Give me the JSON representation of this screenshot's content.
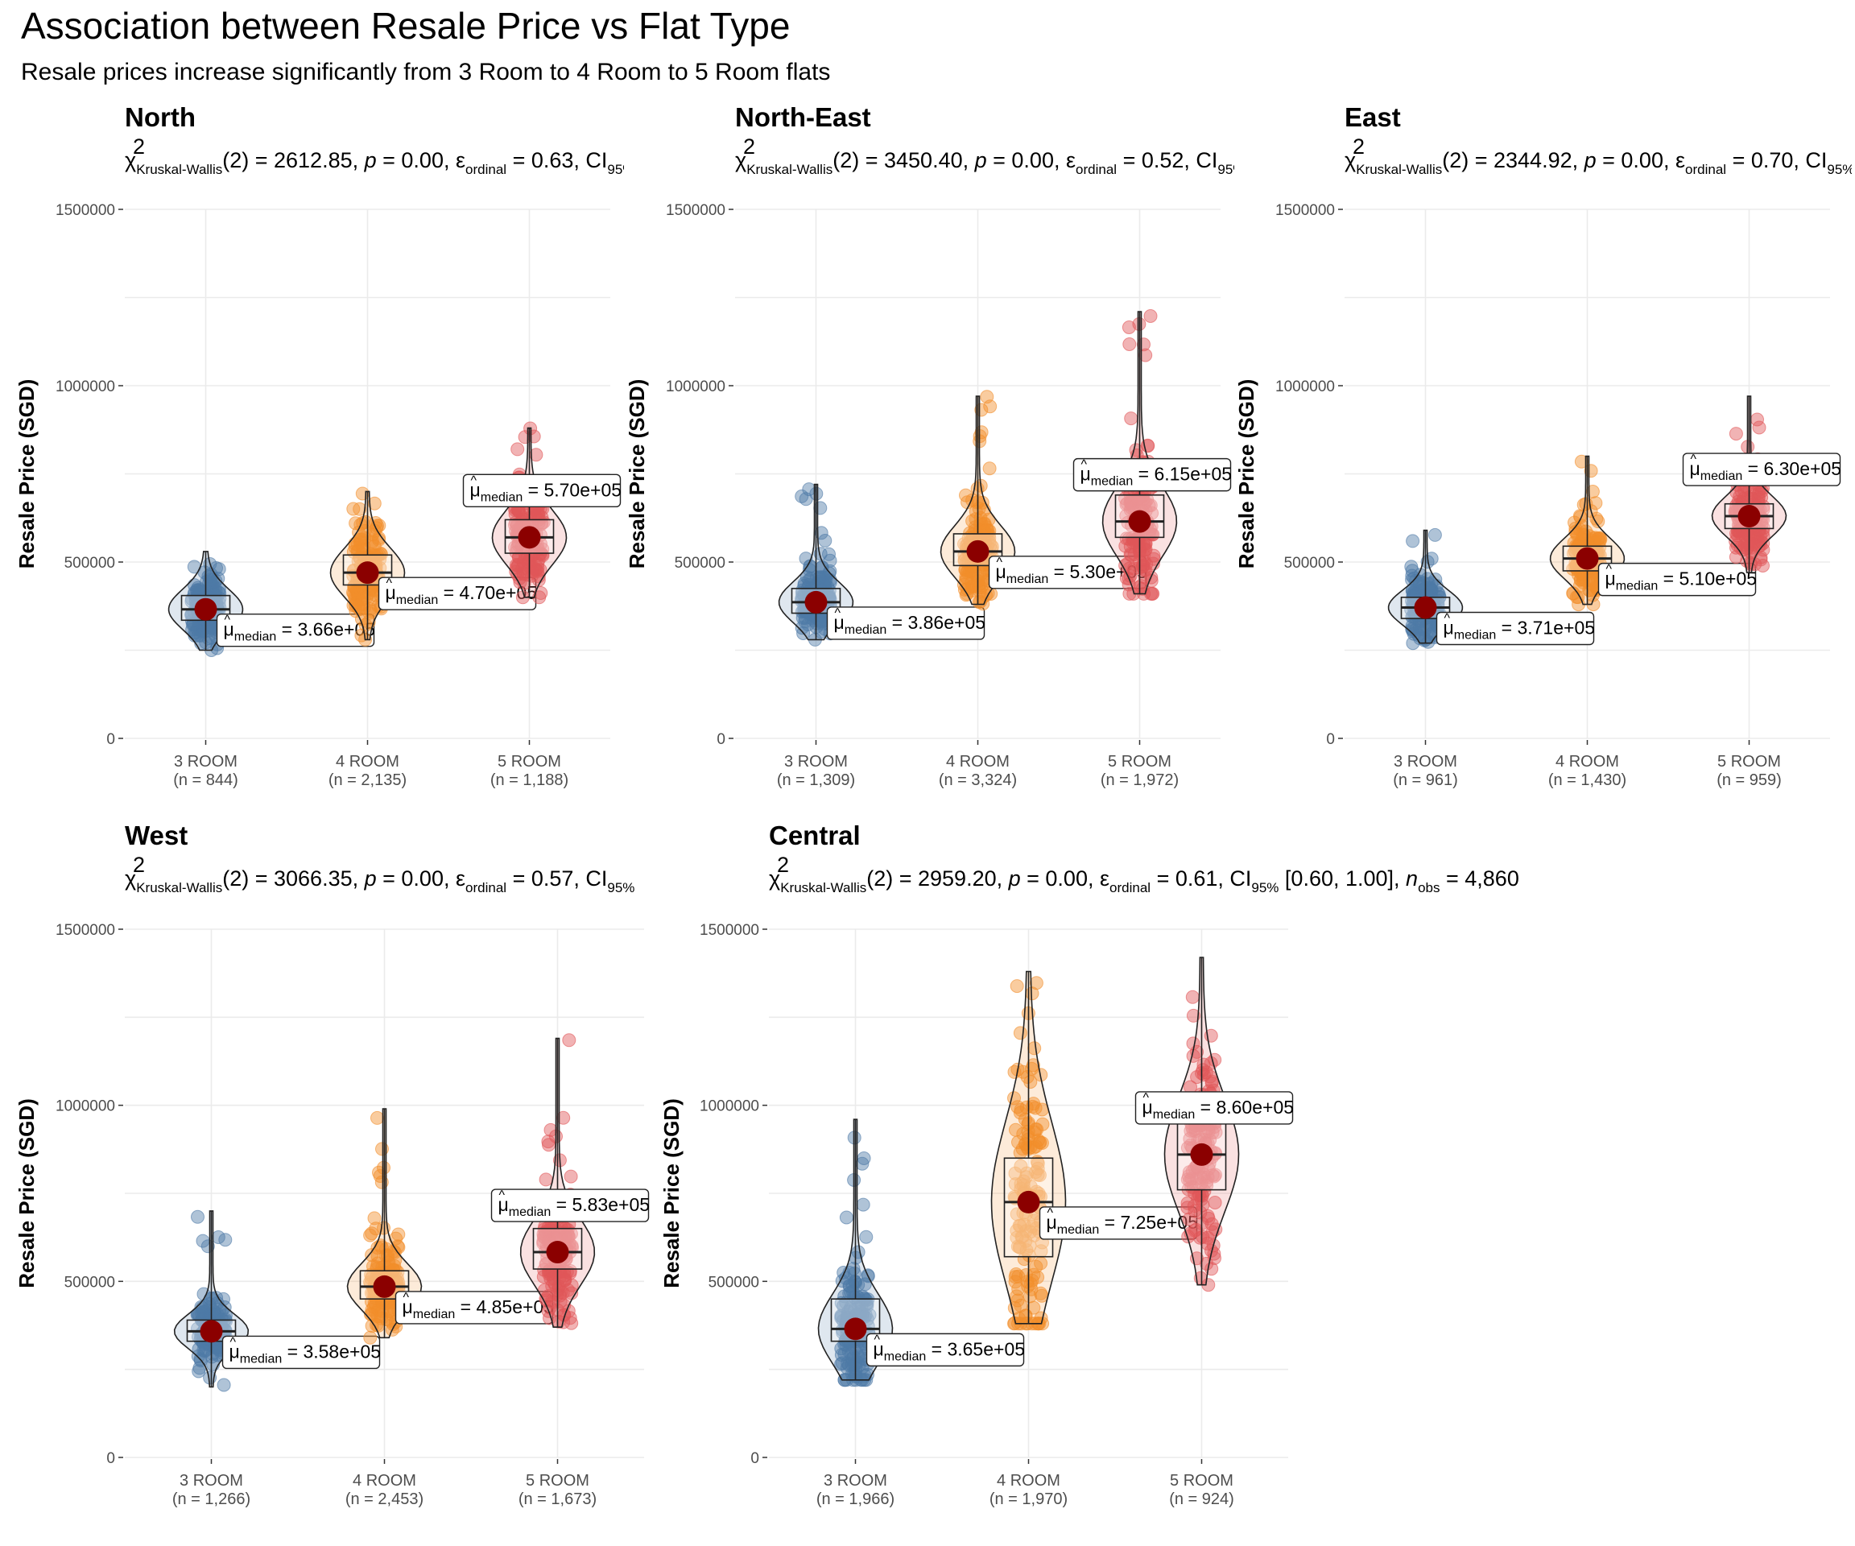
{
  "figure": {
    "title": "Association between Resale Price vs Flat Type",
    "subtitle": "Resale prices increase significantly from 3 Room to 4 Room to 5 Room flats"
  },
  "colors": {
    "3 ROOM": "#4e79a7",
    "4 ROOM": "#f28e2b",
    "5 ROOM": "#e15759",
    "mean_point": "#8b0000"
  },
  "chart_data": [
    {
      "type": "violin",
      "title": "North",
      "stat": {
        "chi2": "2612.85",
        "df": "2",
        "p": "0.00",
        "eps": "0.63"
      },
      "ylabel": "Resale Price (SGD)",
      "ylim": [
        0,
        1500000
      ],
      "yticks": [
        "0",
        "500000",
        "1000000",
        "1500000"
      ],
      "categories": [
        "3 ROOM",
        "4 ROOM",
        "5 ROOM"
      ],
      "n": [
        "(n = 844)",
        "(n = 2,135)",
        "(n = 1,188)"
      ],
      "medians": [
        366000,
        470000,
        570000
      ],
      "median_labels": [
        "3.66e+05",
        "4.70e+05",
        "5.70e+05"
      ],
      "ranges": [
        [
          250000,
          530000
        ],
        [
          280000,
          700000
        ],
        [
          400000,
          880000
        ]
      ],
      "quartiles": [
        [
          335000,
          405000
        ],
        [
          435000,
          520000
        ],
        [
          525000,
          620000
        ]
      ]
    },
    {
      "type": "violin",
      "title": "North-East",
      "stat": {
        "chi2": "3450.40",
        "df": "2",
        "p": "0.00",
        "eps": "0.52"
      },
      "ylabel": "Resale Price (SGD)",
      "ylim": [
        0,
        1500000
      ],
      "yticks": [
        "0",
        "500000",
        "1000000",
        "1500000"
      ],
      "categories": [
        "3 ROOM",
        "4 ROOM",
        "5 ROOM"
      ],
      "n": [
        "(n = 1,309)",
        "(n = 3,324)",
        "(n = 1,972)"
      ],
      "medians": [
        386000,
        530000,
        615000
      ],
      "median_labels": [
        "3.86e+05",
        "5.30e+05",
        "6.15e+05"
      ],
      "ranges": [
        [
          280000,
          720000
        ],
        [
          380000,
          970000
        ],
        [
          410000,
          1210000
        ]
      ],
      "quartiles": [
        [
          355000,
          425000
        ],
        [
          490000,
          580000
        ],
        [
          570000,
          690000
        ]
      ]
    },
    {
      "type": "violin",
      "title": "East",
      "stat": {
        "chi2": "2344.92",
        "df": "2",
        "p": "0.00",
        "eps": "0.70"
      },
      "ylabel": "Resale Price (SGD)",
      "ylim": [
        0,
        1500000
      ],
      "yticks": [
        "0",
        "500000",
        "1000000",
        "1500000"
      ],
      "categories": [
        "3 ROOM",
        "4 ROOM",
        "5 ROOM"
      ],
      "n": [
        "(n = 961)",
        "(n = 1,430)",
        "(n = 959)"
      ],
      "medians": [
        371000,
        510000,
        630000
      ],
      "median_labels": [
        "3.71e+05",
        "5.10e+05",
        "6.30e+05"
      ],
      "ranges": [
        [
          270000,
          590000
        ],
        [
          380000,
          800000
        ],
        [
          470000,
          970000
        ]
      ],
      "quartiles": [
        [
          340000,
          400000
        ],
        [
          475000,
          545000
        ],
        [
          595000,
          665000
        ]
      ]
    },
    {
      "type": "violin",
      "title": "West",
      "stat": {
        "chi2": "3066.35",
        "df": "2",
        "p": "0.00",
        "eps": "0.57"
      },
      "ylabel": "Resale Price (SGD)",
      "ylim": [
        0,
        1500000
      ],
      "yticks": [
        "0",
        "500000",
        "1000000",
        "1500000"
      ],
      "categories": [
        "3 ROOM",
        "4 ROOM",
        "5 ROOM"
      ],
      "n": [
        "(n = 1,266)",
        "(n = 2,453)",
        "(n = 1,673)"
      ],
      "medians": [
        358000,
        485000,
        583000
      ],
      "median_labels": [
        "3.58e+05",
        "4.85e+05",
        "5.83e+05"
      ],
      "ranges": [
        [
          200000,
          700000
        ],
        [
          340000,
          990000
        ],
        [
          370000,
          1190000
        ]
      ],
      "quartiles": [
        [
          330000,
          390000
        ],
        [
          450000,
          530000
        ],
        [
          535000,
          650000
        ]
      ]
    },
    {
      "type": "violin",
      "title": "Central",
      "stat": {
        "chi2": "2959.20",
        "df": "2",
        "p": "0.00",
        "eps": "0.61",
        "ci": "[0.60, 1.00]",
        "nobs": "4,860"
      },
      "ylabel": "Resale Price (SGD)",
      "ylim": [
        0,
        1500000
      ],
      "yticks": [
        "0",
        "500000",
        "1000000",
        "1500000"
      ],
      "categories": [
        "3 ROOM",
        "4 ROOM",
        "5 ROOM"
      ],
      "n": [
        "(n = 1,966)",
        "(n = 1,970)",
        "(n = 924)"
      ],
      "medians": [
        365000,
        725000,
        860000
      ],
      "median_labels": [
        "3.65e+05",
        "7.25e+05",
        "8.60e+05"
      ],
      "ranges": [
        [
          220000,
          960000
        ],
        [
          380000,
          1380000
        ],
        [
          490000,
          1420000
        ]
      ],
      "quartiles": [
        [
          330000,
          450000
        ],
        [
          570000,
          850000
        ],
        [
          760000,
          960000
        ]
      ]
    }
  ]
}
